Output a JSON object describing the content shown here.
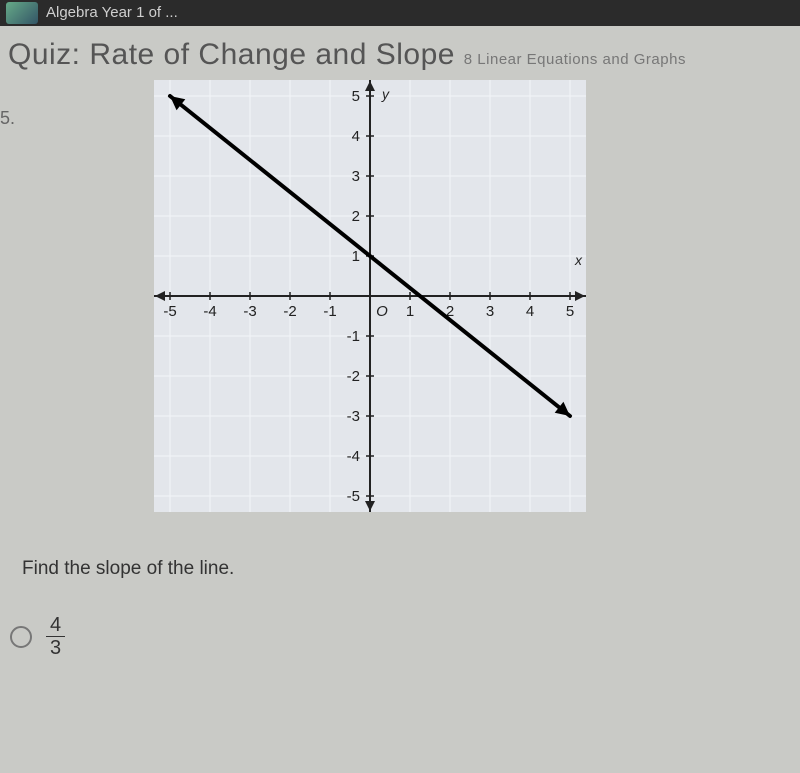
{
  "top_bar": {
    "text": "Algebra Year 1 of ..."
  },
  "quiz": {
    "title": "Quiz: Rate of Change and Slope",
    "subtitle": "8 Linear Equations and Graphs"
  },
  "question": {
    "number": "5.",
    "prompt": "Find the slope of the line.",
    "answer_options": [
      {
        "numerator": "4",
        "denominator": "3"
      }
    ]
  },
  "graph": {
    "type": "line",
    "background_color": "#e3e6eb",
    "grid_color": "#f3f5f8",
    "axis_color": "#222222",
    "line_color": "#000000",
    "line_width": 4,
    "xlim": [
      -5.4,
      5.4
    ],
    "ylim": [
      -5.4,
      5.4
    ],
    "x_ticks": [
      -5,
      -4,
      -3,
      -2,
      -1,
      0,
      1,
      2,
      3,
      4,
      5
    ],
    "y_ticks": [
      -5,
      -4,
      -3,
      -2,
      -1,
      1,
      2,
      3,
      4,
      5
    ],
    "tick_fontsize": 15,
    "tick_color": "#222222",
    "x_axis_label": "x",
    "y_axis_label": "y",
    "line_points": [
      [
        -5,
        5
      ],
      [
        5,
        -3
      ]
    ]
  }
}
